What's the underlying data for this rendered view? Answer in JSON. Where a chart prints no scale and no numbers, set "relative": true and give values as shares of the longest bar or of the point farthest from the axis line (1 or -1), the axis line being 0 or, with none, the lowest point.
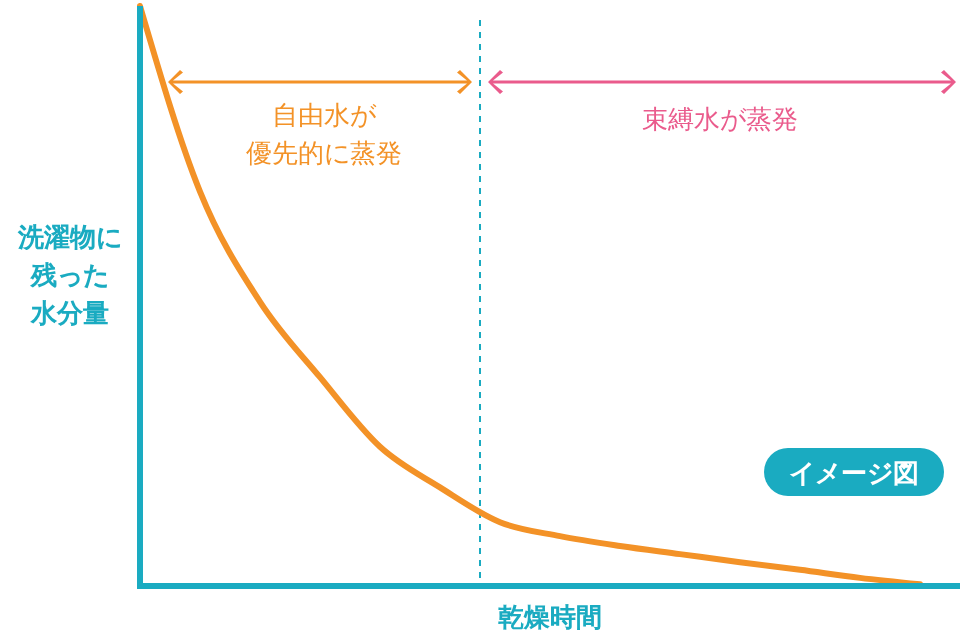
{
  "chart_data": {
    "type": "line",
    "relative": true,
    "xlabel": "乾燥時間",
    "ylabel": "洗濯物に残った水分量",
    "categories": [
      null,
      null,
      null,
      null,
      null,
      null,
      null,
      null,
      null,
      null,
      null,
      null,
      null,
      null
    ],
    "series": [
      {
        "color": "#f39227",
        "values": [
          1,
          0.68,
          0.49,
          0.36,
          0.24,
          0.17,
          0.11,
          0.086,
          0.069,
          0.055,
          0.041,
          0.028,
          0.014,
          0.003
        ]
      }
    ],
    "annotations": [
      "自由水が優先的に蒸発",
      "束縛水が蒸発",
      "イメージ図"
    ],
    "line_style": "solid"
  }
}
